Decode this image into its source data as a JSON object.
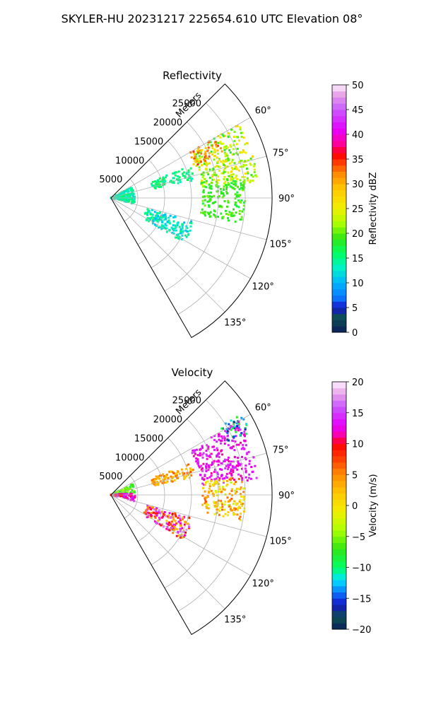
{
  "figure": {
    "suptitle": "SKYLER-HU  20231217  225654.610 UTC Elevation 08°"
  },
  "chart_data": [
    {
      "type": "heatmap",
      "subtype": "polar-sector",
      "title": "Reflectivity",
      "radial_axis_label": "Meters",
      "radial_ticks": [
        "5000",
        "10000",
        "15000",
        "20000",
        "25000"
      ],
      "radial_tick_values": [
        5000,
        10000,
        15000,
        20000,
        25000
      ],
      "r_max": 30000,
      "angle_range_deg": [
        45,
        150
      ],
      "angle_tick_values": [
        60,
        75,
        90,
        105,
        120,
        135
      ],
      "angle_ticks": [
        "60°",
        "75°",
        "90°",
        "105°",
        "120°",
        "135°"
      ],
      "grid": true,
      "colorbar": {
        "label": "Reflectivity dBZ",
        "range": [
          0,
          50
        ],
        "ticks": [
          "0",
          "5",
          "10",
          "15",
          "20",
          "25",
          "30",
          "35",
          "40",
          "45",
          "50"
        ],
        "tick_values": [
          0,
          5,
          10,
          15,
          20,
          25,
          30,
          35,
          40,
          45,
          50
        ],
        "color_stops": [
          [
            0,
            "#0a1e5a"
          ],
          [
            3,
            "#0d5050"
          ],
          [
            5,
            "#1414c8"
          ],
          [
            7,
            "#0a78ff"
          ],
          [
            10,
            "#00b4ff"
          ],
          [
            13,
            "#00f0c8"
          ],
          [
            16,
            "#00ff64"
          ],
          [
            19,
            "#32e614"
          ],
          [
            22,
            "#aaff00"
          ],
          [
            25,
            "#f0f000"
          ],
          [
            29,
            "#ffc800"
          ],
          [
            32,
            "#ff8c00"
          ],
          [
            36,
            "#ff0000"
          ],
          [
            38,
            "#ff0096"
          ],
          [
            41,
            "#e600ff"
          ],
          [
            45,
            "#c85aff"
          ],
          [
            48,
            "#e6a0e6"
          ],
          [
            50,
            "#fff0ff"
          ]
        ]
      },
      "echo_regions": [
        {
          "r": [
            0,
            4500
          ],
          "theta": [
            62,
            105
          ],
          "value": 14,
          "spread": 2
        },
        {
          "r": [
            8000,
            16000
          ],
          "theta": [
            68,
            78
          ],
          "value": 15,
          "spread": 2
        },
        {
          "r": [
            7000,
            16000
          ],
          "theta": [
            106,
            122
          ],
          "value": 13,
          "spread": 3
        },
        {
          "r": [
            17000,
            27500
          ],
          "theta": [
            60,
            84
          ],
          "value": 23,
          "spread": 5
        },
        {
          "r": [
            16500,
            22500
          ],
          "theta": [
            60,
            69
          ],
          "value": 31,
          "spread": 4
        },
        {
          "r": [
            17000,
            25000
          ],
          "theta": [
            82,
            101
          ],
          "value": 19,
          "spread": 2
        }
      ]
    },
    {
      "type": "heatmap",
      "subtype": "polar-sector",
      "title": "Velocity",
      "radial_axis_label": "Meters",
      "radial_ticks": [
        "5000",
        "10000",
        "15000",
        "20000",
        "25000"
      ],
      "radial_tick_values": [
        5000,
        10000,
        15000,
        20000,
        25000
      ],
      "r_max": 30000,
      "angle_range_deg": [
        45,
        150
      ],
      "angle_tick_values": [
        60,
        75,
        90,
        105,
        120,
        135
      ],
      "angle_ticks": [
        "60°",
        "75°",
        "90°",
        "105°",
        "120°",
        "135°"
      ],
      "grid": true,
      "colorbar": {
        "label": "Velocity (m/s)",
        "range": [
          -20,
          20
        ],
        "ticks": [
          "−20",
          "−15",
          "−10",
          "−5",
          "0",
          "5",
          "10",
          "15",
          "20"
        ],
        "tick_values": [
          -20,
          -15,
          -10,
          -5,
          0,
          5,
          10,
          15,
          20
        ],
        "color_stops": [
          [
            -20,
            "#0a1e5a"
          ],
          [
            -18,
            "#0d5050"
          ],
          [
            -16,
            "#1414c8"
          ],
          [
            -14,
            "#0a78ff"
          ],
          [
            -12,
            "#00e6ff"
          ],
          [
            -10,
            "#00ff64"
          ],
          [
            -7,
            "#32e614"
          ],
          [
            -4,
            "#aaff00"
          ],
          [
            -1,
            "#f0f000"
          ],
          [
            2,
            "#ffc800"
          ],
          [
            5,
            "#ff8c00"
          ],
          [
            8,
            "#ff3200"
          ],
          [
            10,
            "#ff0000"
          ],
          [
            11,
            "#ff0096"
          ],
          [
            13,
            "#e600ff"
          ],
          [
            16,
            "#c85aff"
          ],
          [
            18,
            "#e6a0e6"
          ],
          [
            20,
            "#fff0ff"
          ]
        ]
      },
      "echo_regions": [
        {
          "r": [
            0,
            4500
          ],
          "theta": [
            62,
            85
          ],
          "value": -6,
          "spread": 3
        },
        {
          "r": [
            0,
            4500
          ],
          "theta": [
            85,
            105
          ],
          "value": 12,
          "spread": 3
        },
        {
          "r": [
            8000,
            16000
          ],
          "theta": [
            68,
            78
          ],
          "value": 4,
          "spread": 3
        },
        {
          "r": [
            7000,
            16000
          ],
          "theta": [
            106,
            122
          ],
          "value": 10,
          "spread": 8
        },
        {
          "r": [
            17000,
            27500
          ],
          "theta": [
            60,
            84
          ],
          "value": 13,
          "spread": 2
        },
        {
          "r": [
            17000,
            25000
          ],
          "theta": [
            82,
            101
          ],
          "value": 2,
          "spread": 5
        },
        {
          "r": [
            24000,
            28500
          ],
          "theta": [
            58,
            66
          ],
          "value": -12,
          "spread": 6
        }
      ]
    }
  ]
}
